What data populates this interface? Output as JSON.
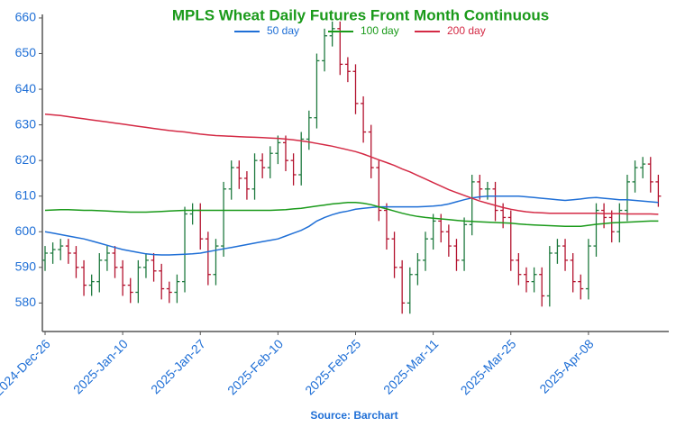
{
  "chart_data": {
    "type": "ohlc",
    "title": "MPLS Wheat Daily Futures Front Month Continuous",
    "source": "Source: Barchart",
    "legend": "top",
    "up_color": "#1f7a3f",
    "down_color": "#b3122e",
    "categories": [
      "2024-Dec-26",
      null,
      null,
      null,
      null,
      null,
      null,
      null,
      null,
      null,
      "2025-Jan-10",
      null,
      null,
      null,
      null,
      null,
      null,
      null,
      null,
      null,
      "2025-Jan-27",
      null,
      null,
      null,
      null,
      null,
      null,
      null,
      null,
      null,
      "2025-Feb-10",
      null,
      null,
      null,
      null,
      null,
      null,
      null,
      null,
      null,
      "2025-Feb-25",
      null,
      null,
      null,
      null,
      null,
      null,
      null,
      null,
      null,
      "2025-Mar-11",
      null,
      null,
      null,
      null,
      null,
      null,
      null,
      null,
      null,
      "2025-Mar-25",
      null,
      null,
      null,
      null,
      null,
      null,
      null,
      null,
      null,
      "2025-Apr-08",
      null,
      null,
      null,
      null,
      null,
      null,
      null,
      null,
      null
    ],
    "open": [
      592,
      594,
      595,
      596,
      594,
      590,
      585,
      586,
      592,
      594,
      590,
      585,
      583,
      590,
      592,
      589,
      584,
      583,
      586,
      605,
      606,
      598,
      588,
      596,
      612,
      618,
      615,
      612,
      620,
      618,
      622,
      625,
      620,
      616,
      626,
      632,
      648,
      655,
      657,
      647,
      645,
      636,
      628,
      618,
      606,
      598,
      590,
      580,
      588,
      592,
      598,
      603,
      600,
      596,
      592,
      602,
      614,
      612,
      612,
      606,
      604,
      592,
      588,
      586,
      588,
      582,
      594,
      596,
      592,
      586,
      584,
      596,
      606,
      604,
      600,
      606,
      614,
      618,
      619,
      614
    ],
    "high": [
      596,
      597,
      598,
      598,
      596,
      592,
      588,
      594,
      596,
      596,
      592,
      587,
      592,
      594,
      594,
      591,
      586,
      588,
      607,
      608,
      608,
      600,
      598,
      614,
      620,
      620,
      617,
      622,
      622,
      624,
      627,
      627,
      622,
      628,
      634,
      650,
      657,
      659,
      659,
      649,
      647,
      638,
      630,
      620,
      608,
      600,
      592,
      590,
      594,
      600,
      605,
      605,
      602,
      598,
      604,
      616,
      616,
      614,
      614,
      608,
      606,
      594,
      590,
      590,
      590,
      596,
      598,
      598,
      594,
      588,
      598,
      608,
      608,
      606,
      608,
      616,
      620,
      621,
      621,
      616
    ],
    "low": [
      589,
      591,
      592,
      591,
      587,
      582,
      582,
      583,
      589,
      587,
      582,
      580,
      580,
      587,
      586,
      581,
      580,
      580,
      583,
      602,
      595,
      585,
      585,
      593,
      609,
      612,
      609,
      609,
      615,
      615,
      619,
      617,
      613,
      613,
      623,
      629,
      645,
      652,
      644,
      642,
      633,
      625,
      615,
      603,
      595,
      587,
      577,
      577,
      585,
      589,
      595,
      597,
      593,
      589,
      589,
      599,
      609,
      609,
      603,
      601,
      589,
      585,
      583,
      583,
      579,
      579,
      591,
      589,
      583,
      581,
      581,
      593,
      601,
      597,
      597,
      603,
      611,
      615,
      611,
      607
    ],
    "close": [
      594,
      595,
      596,
      594,
      590,
      585,
      586,
      592,
      594,
      590,
      585,
      583,
      590,
      592,
      589,
      584,
      583,
      586,
      605,
      606,
      598,
      588,
      596,
      612,
      618,
      615,
      612,
      620,
      618,
      622,
      625,
      620,
      616,
      626,
      632,
      648,
      655,
      657,
      647,
      645,
      636,
      628,
      618,
      606,
      598,
      590,
      580,
      588,
      592,
      598,
      603,
      600,
      596,
      592,
      602,
      614,
      612,
      612,
      606,
      604,
      592,
      588,
      586,
      588,
      582,
      594,
      596,
      592,
      586,
      584,
      596,
      606,
      604,
      600,
      606,
      614,
      618,
      619,
      614,
      610
    ],
    "series": [
      {
        "name": "50 day",
        "color": "#1f6fd6",
        "values": [
          600,
          599.6,
          599.2,
          598.8,
          598.4,
          598,
          597.4,
          596.8,
          596.2,
          595.6,
          595,
          594.6,
          594.2,
          593.8,
          593.6,
          593.5,
          593.5,
          593.6,
          593.7,
          593.8,
          594,
          594.4,
          594.8,
          595.2,
          595.6,
          596,
          596.4,
          596.8,
          597.2,
          597.6,
          598,
          598.8,
          599.6,
          600.4,
          601.5,
          603,
          604,
          604.8,
          605.4,
          605.8,
          606.3,
          606.6,
          606.8,
          607,
          607,
          607,
          607,
          607,
          607,
          607.1,
          607.2,
          607.4,
          607.8,
          608.4,
          609,
          609.5,
          609.8,
          610,
          610,
          610,
          610,
          610,
          609.8,
          609.6,
          609.4,
          609.2,
          609,
          608.8,
          609,
          609.2,
          609.5,
          609.6,
          609.4,
          609.2,
          609,
          609,
          608.8,
          608.6,
          608.4,
          608.2
        ]
      },
      {
        "name": "100 day",
        "color": "#1a9a1a",
        "values": [
          606,
          606.1,
          606.2,
          606.2,
          606.1,
          606,
          606,
          605.9,
          605.8,
          605.7,
          605.6,
          605.5,
          605.5,
          605.5,
          605.6,
          605.7,
          605.8,
          605.9,
          606,
          606,
          606,
          606,
          606,
          606,
          606,
          606,
          606,
          606,
          606,
          606,
          606.1,
          606.2,
          606.4,
          606.6,
          606.9,
          607.2,
          607.5,
          607.8,
          608,
          608.2,
          608.2,
          608,
          607.6,
          607,
          606.4,
          605.8,
          605.2,
          604.7,
          604.3,
          604,
          603.8,
          603.6,
          603.4,
          603.2,
          603,
          602.9,
          602.8,
          602.7,
          602.6,
          602.5,
          602.4,
          602.2,
          602,
          601.9,
          601.8,
          601.7,
          601.6,
          601.5,
          601.5,
          601.5,
          601.8,
          602.1,
          602.3,
          602.5,
          602.6,
          602.7,
          602.8,
          602.9,
          603,
          603
        ]
      },
      {
        "name": "200 day",
        "color": "#d42a45",
        "values": [
          633,
          632.8,
          632.6,
          632.3,
          632,
          631.7,
          631.4,
          631.1,
          630.8,
          630.5,
          630.2,
          629.9,
          629.6,
          629.3,
          629,
          628.7,
          628.4,
          628.2,
          628,
          627.7,
          627.4,
          627.2,
          627,
          626.9,
          626.8,
          626.7,
          626.6,
          626.5,
          626.4,
          626.3,
          626.2,
          626,
          625.8,
          625.5,
          625.2,
          624.8,
          624.4,
          624,
          623.5,
          623,
          622.5,
          621.8,
          621,
          620.2,
          619.4,
          618.6,
          617.6,
          616.8,
          615.8,
          614.8,
          613.8,
          612.8,
          611.8,
          611,
          610.2,
          609.4,
          608.6,
          608,
          607.4,
          606.8,
          606.3,
          605.9,
          605.6,
          605.4,
          605.3,
          605.2,
          605.2,
          605.2,
          605.2,
          605.2,
          605.2,
          605.2,
          605.1,
          605.1,
          605.1,
          605,
          605,
          605,
          605,
          604.9
        ]
      }
    ],
    "ylim": [
      572,
      661
    ],
    "yticks": [
      580,
      590,
      600,
      610,
      620,
      630,
      640,
      650,
      660
    ]
  }
}
